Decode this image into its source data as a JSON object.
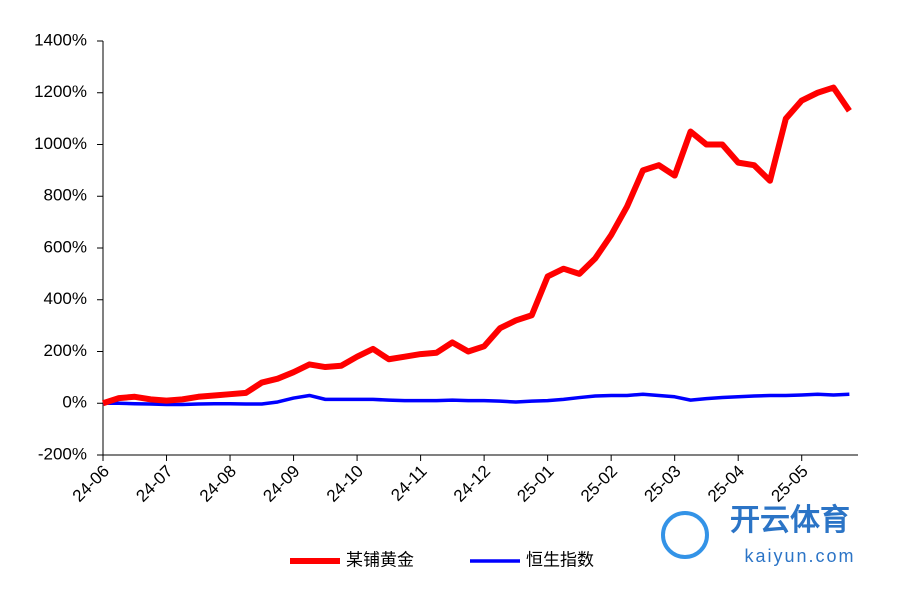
{
  "chart_data": {
    "type": "line",
    "categories": [
      "24-06",
      null,
      null,
      null,
      "24-07",
      null,
      null,
      null,
      "24-08",
      null,
      null,
      null,
      "24-09",
      null,
      null,
      null,
      "24-10",
      null,
      null,
      null,
      "24-11",
      null,
      null,
      null,
      "24-12",
      null,
      null,
      null,
      "25-01",
      null,
      null,
      null,
      "25-02",
      null,
      null,
      null,
      "25-03",
      null,
      null,
      null,
      "25-04",
      null,
      null,
      null,
      "25-05",
      null,
      null,
      null
    ],
    "series": [
      {
        "name": "某铺黄金",
        "color": "#ff0000",
        "values": [
          0,
          20,
          25,
          15,
          10,
          15,
          25,
          30,
          35,
          40,
          80,
          95,
          120,
          150,
          140,
          145,
          180,
          210,
          170,
          180,
          190,
          195,
          235,
          200,
          220,
          290,
          320,
          340,
          490,
          520,
          500,
          560,
          650,
          760,
          900,
          920,
          880,
          1050,
          1000,
          1000,
          930,
          920,
          860,
          1100,
          1170,
          1200,
          1220,
          1130
        ]
      },
      {
        "name": "恒生指数",
        "color": "#0000ff",
        "values": [
          0,
          0,
          -2,
          -3,
          -5,
          -5,
          -3,
          -2,
          -2,
          -3,
          -3,
          5,
          20,
          30,
          15,
          15,
          15,
          15,
          12,
          10,
          10,
          10,
          12,
          10,
          10,
          8,
          5,
          8,
          10,
          15,
          22,
          28,
          30,
          30,
          35,
          30,
          25,
          12,
          18,
          22,
          25,
          28,
          30,
          30,
          32,
          35,
          32,
          35
        ]
      }
    ],
    "ylim": [
      -200,
      1400
    ],
    "yticks": [
      {
        "value": -200,
        "label": "-200%"
      },
      {
        "value": 0,
        "label": "0%"
      },
      {
        "value": 200,
        "label": "200%"
      },
      {
        "value": 400,
        "label": "400%"
      },
      {
        "value": 600,
        "label": "600%"
      },
      {
        "value": 800,
        "label": "800%"
      },
      {
        "value": 1000,
        "label": "1000%"
      },
      {
        "value": 1200,
        "label": "1200%"
      },
      {
        "value": 1400,
        "label": "1400%"
      }
    ],
    "grid": false,
    "legend": "bottom"
  },
  "watermark": {
    "brand": "开云体育",
    "url": "kaiyun.com"
  }
}
